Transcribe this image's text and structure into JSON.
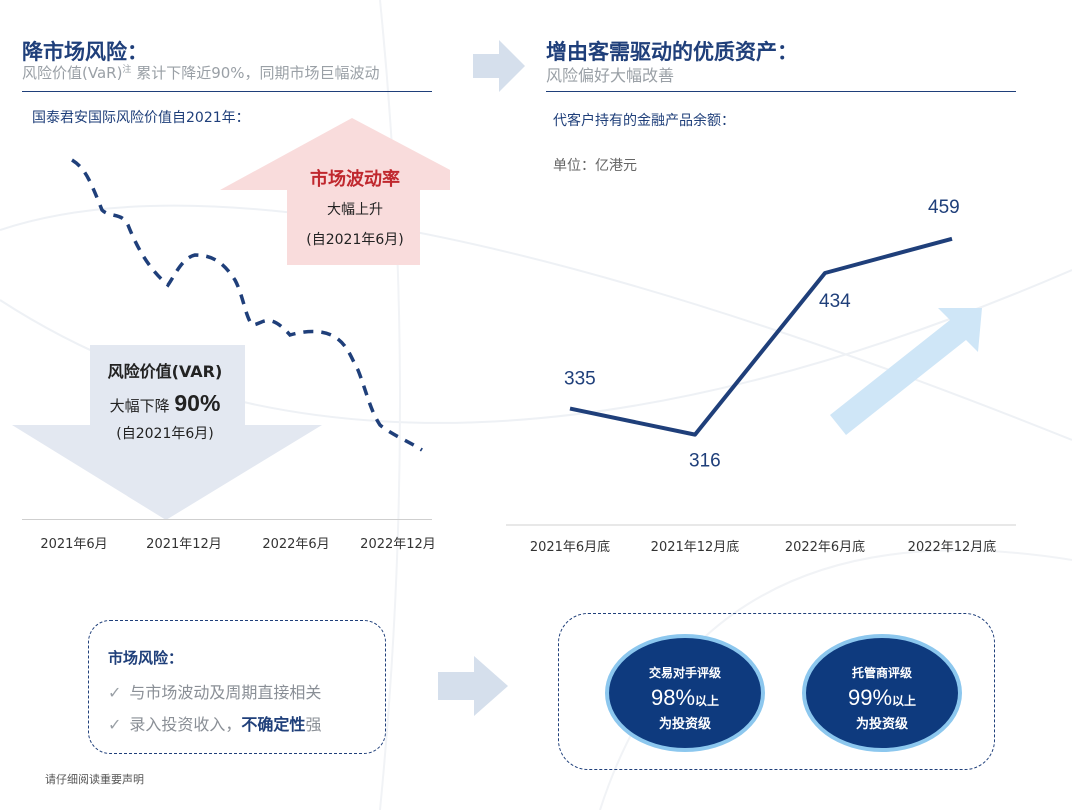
{
  "left": {
    "title": "降市场风险：",
    "subtitle": "风险价值(VaR)",
    "subtitle_note": "注",
    "subtitle_tail": "累计下降近90%，同期市场巨幅波动",
    "caption": "国泰君安国际风险价值自2021年：",
    "up_callout": {
      "title": "市场波动率",
      "line2": "大幅上升",
      "line3": "(自2021年6月)"
    },
    "down_callout": {
      "title": "风险价值(VAR)",
      "line2_prefix": "大幅下降 ",
      "line2_big": "90%",
      "line3": "(自2021年6月)"
    },
    "x_ticks": [
      "2021年6月",
      "2021年12月",
      "2022年6月",
      "2022年12月"
    ]
  },
  "right": {
    "title": "增由客需驱动的优质资产：",
    "subtitle": "风险偏好大幅改善",
    "caption": "代客户持有的金融产品余额：",
    "unit": "单位：亿港元"
  },
  "chart_data": [
    {
      "type": "line",
      "title": "",
      "xlabel": "",
      "ylabel": "",
      "categories": [
        "2021年6月底",
        "2021年12月底",
        "2022年6月底",
        "2022年12月底"
      ],
      "values": [
        335,
        316,
        434,
        459
      ],
      "ylim": [
        250,
        480
      ],
      "grid": false,
      "color": "#1f3f7a"
    }
  ],
  "bottom_left": {
    "title": "市场风险：",
    "items": [
      {
        "check": "✓",
        "text": "与市场波动及周期直接相关",
        "strong": "",
        "tail": ""
      },
      {
        "check": "✓",
        "text": "录入投资收入，",
        "strong": "不确定性",
        "tail": "强"
      }
    ]
  },
  "bottom_right": {
    "circles": [
      {
        "line1": "交易对手评级",
        "pct": "98%",
        "suffix": "以上",
        "line3": "为投资级"
      },
      {
        "line1": "托管商评级",
        "pct": "99%",
        "suffix": "以上",
        "line3": "为投资级"
      }
    ]
  },
  "footer": "请仔细阅读重要声明",
  "colors": {
    "navy": "#1f3f7a",
    "red": "#c0282e",
    "pink": "#f8dcdc",
    "lightblue": "#cfe6f7",
    "grayblue": "#e3e8f1"
  }
}
